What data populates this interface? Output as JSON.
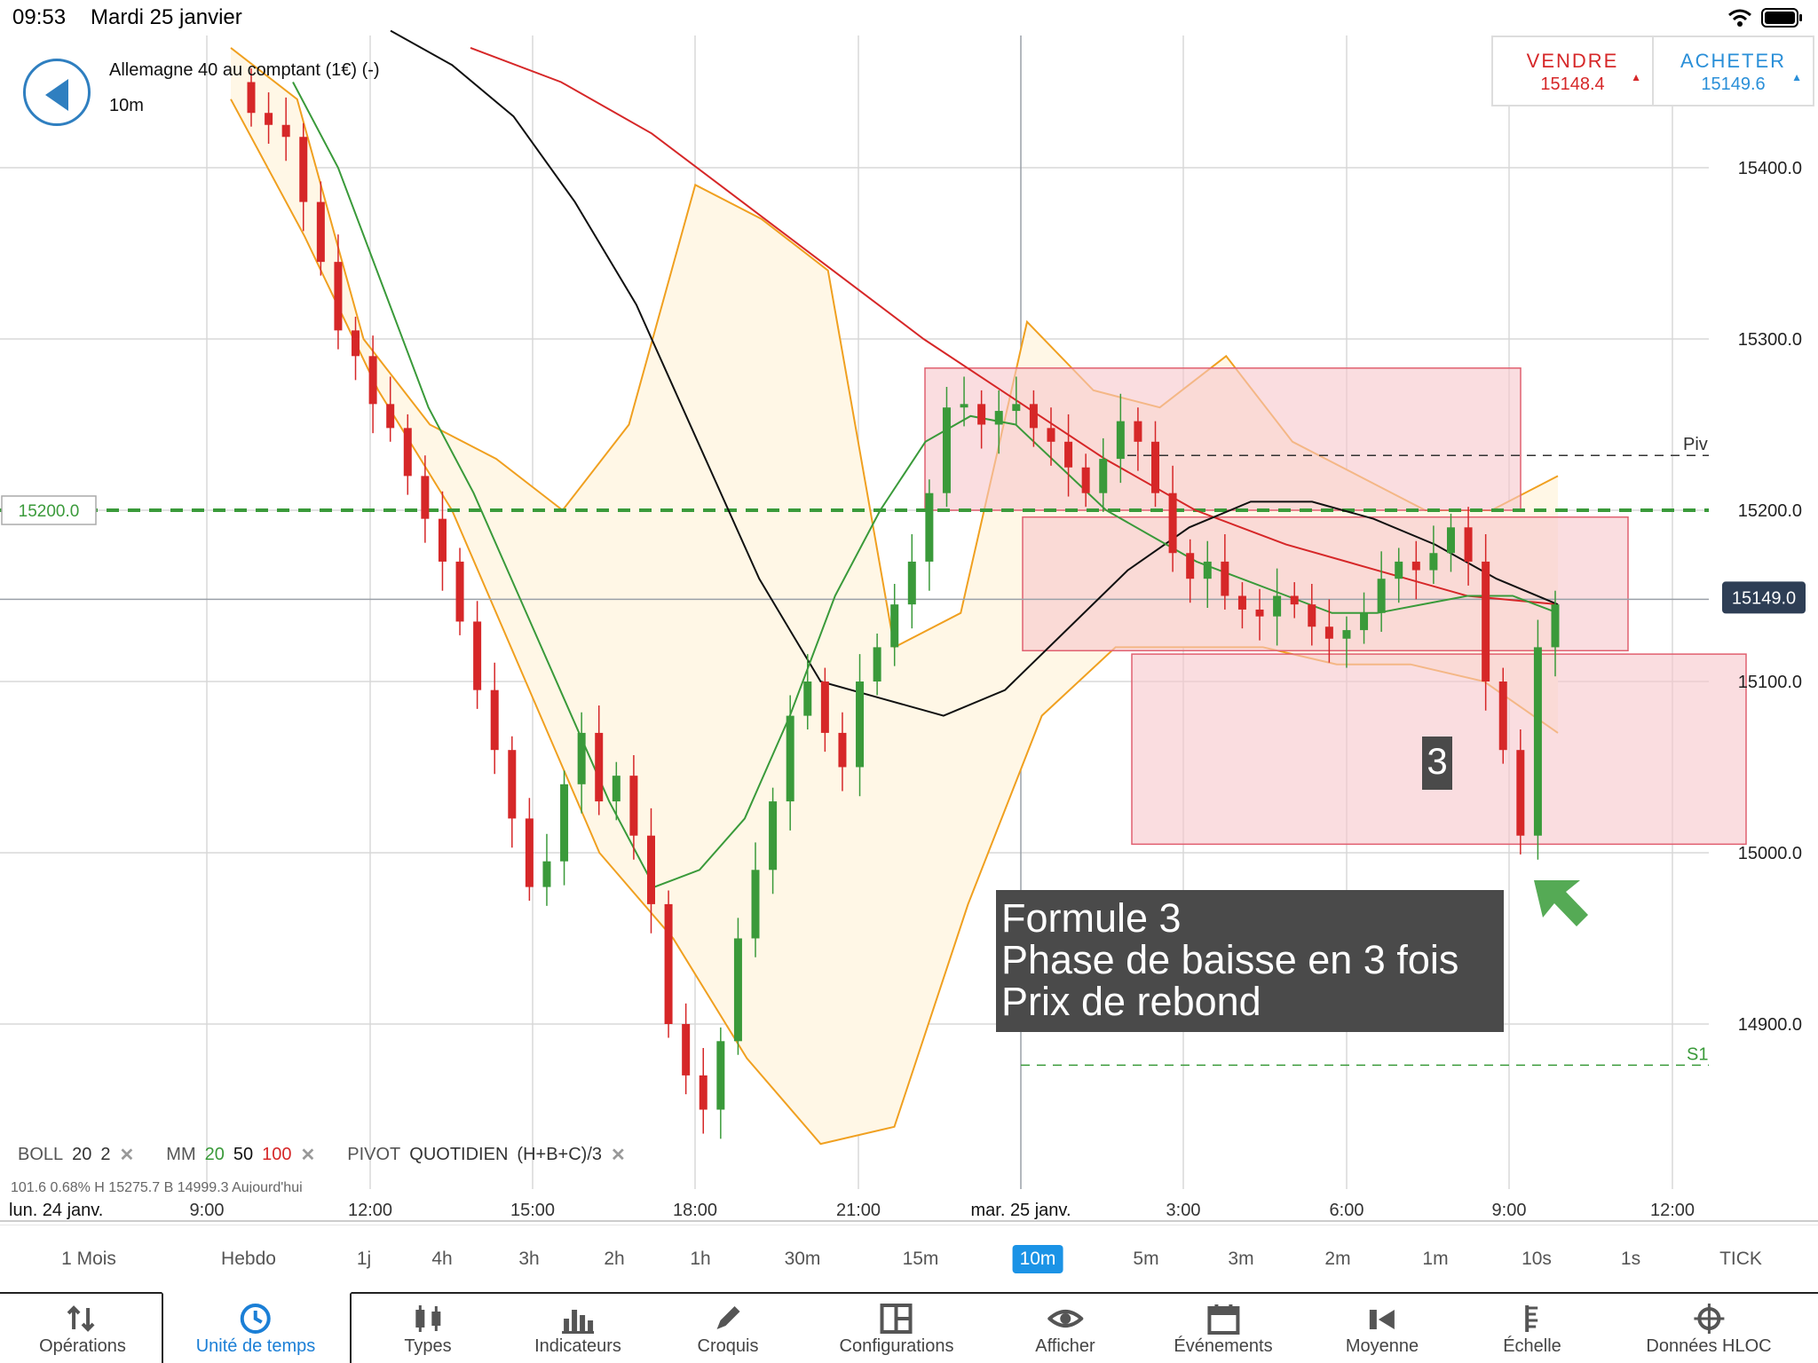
{
  "status_bar": {
    "time": "09:53",
    "date": "Mardi 25 janvier"
  },
  "header": {
    "instrument": "Allemagne 40 au comptant (1€) (-)",
    "timeframe": "10m",
    "back_icon": "back-arrow-icon"
  },
  "trade": {
    "sell_label": "VENDRE",
    "sell_price": "15148.4",
    "buy_label": "ACHETER",
    "buy_price": "15149.6",
    "sell_color": "#d62728",
    "buy_color": "#2a8fd8"
  },
  "chart_data": {
    "type": "candlestick",
    "y_ticks": [
      15400,
      15300,
      15200,
      15100,
      15000,
      14900
    ],
    "y_tick_labels": [
      "15400.0",
      "15300.0",
      "15200.0",
      "15100.0",
      "15000.0",
      "14900.0"
    ],
    "x_tick_labels": [
      "9:00",
      "12:00",
      "15:00",
      "18:00",
      "21:00",
      "3:00",
      "6:00",
      "9:00",
      "12:00"
    ],
    "date_labels": [
      "lun. 24 janv.",
      "mar. 25 janv."
    ],
    "current_price": "15149.0",
    "horizontal_line_label": "15200.0",
    "pivot_label": "Piv",
    "pivot_value": 15232,
    "support_label": "S1",
    "support_value": 14876,
    "annotation_number": "3",
    "annotation_lines": [
      "Formule 3",
      "Phase de baisse en 3 fois",
      "Prix de rebond"
    ],
    "closes": [
      15432,
      15425,
      15418,
      15380,
      15345,
      15305,
      15290,
      15262,
      15248,
      15220,
      15195,
      15170,
      15135,
      15095,
      15060,
      15020,
      14980,
      14995,
      15040,
      15070,
      15030,
      15045,
      15010,
      14970,
      14900,
      14870,
      14850,
      14890,
      14950,
      14990,
      15030,
      15080,
      15100,
      15070,
      15050,
      15100,
      15120,
      15145,
      15170,
      15210,
      15260,
      15262,
      15250,
      15258,
      15262,
      15248,
      15240,
      15225,
      15210,
      15230,
      15252,
      15240,
      15210,
      15175,
      15160,
      15170,
      15150,
      15142,
      15138,
      15150,
      15145,
      15132,
      15125,
      15130,
      15140,
      15160,
      15170,
      15165,
      15175,
      15190,
      15170,
      15100,
      15060,
      15010,
      15120,
      15145
    ],
    "ma20": [
      15450,
      15400,
      15330,
      15260,
      15210,
      15150,
      15090,
      15030,
      14980,
      14990,
      15020,
      15080,
      15150,
      15200,
      15240,
      15255,
      15250,
      15225,
      15200,
      15185,
      15170,
      15160,
      15150,
      15140,
      15140,
      15145,
      15150,
      15150,
      15140
    ],
    "ma50": [
      15480,
      15460,
      15430,
      15380,
      15320,
      15240,
      15160,
      15100,
      15090,
      15080,
      15095,
      15130,
      15165,
      15190,
      15205,
      15205,
      15195,
      15180,
      15160,
      15145
    ],
    "ma100": [
      15470,
      15450,
      15420,
      15380,
      15340,
      15300,
      15265,
      15230,
      15200,
      15180,
      15165,
      15150,
      15145
    ],
    "boll_upper_points": [
      15470,
      15440,
      15300,
      15250,
      15230,
      15200,
      15250,
      15390,
      15370,
      15340,
      15120,
      15140,
      15310,
      15270,
      15260,
      15290,
      15240,
      15220,
      15200,
      15200,
      15220
    ],
    "boll_lower_points": [
      15440,
      15360,
      15270,
      15200,
      15100,
      15000,
      14950,
      14880,
      14830,
      14840,
      14970,
      15080,
      15120,
      15120,
      15120,
      15110,
      15110,
      15100,
      15070
    ],
    "zones": [
      {
        "from": 15200,
        "to": 15283
      },
      {
        "from": 15118,
        "to": 15196
      },
      {
        "from": 15005,
        "to": 15116
      }
    ],
    "colors": {
      "bull": "#3a9a3a",
      "bear": "#d62728",
      "ma20": "#3a9a3a",
      "ma50": "#111111",
      "ma100": "#d62728",
      "boll": "#f0a020",
      "boll_fill": "#fff7e6",
      "zone_fill": "#f7c7cc",
      "zone_stroke": "#e06070",
      "dashed_200": "#3a9a3a",
      "price_tag_bg": "#2e3e55"
    }
  },
  "indicator_legend": {
    "boll_name": "BOLL",
    "boll_p1": "20",
    "boll_p2": "2",
    "mm_name": "MM",
    "mm_p1": "20",
    "mm_p2": "50",
    "mm_p3": "100",
    "pivot_name": "PIVOT",
    "pivot_type": "QUOTIDIEN",
    "pivot_formula": "(H+B+C)/3",
    "remove_glyph": "✕",
    "second_row": "101.6     0.68%        H 15275.7     B 14999.3     Aujourd'hui"
  },
  "timeframes": {
    "items": [
      "1 Mois",
      "Hebdo",
      "1j",
      "4h",
      "3h",
      "2h",
      "1h",
      "30m",
      "15m",
      "10m",
      "5m",
      "3m",
      "2m",
      "1m",
      "10s",
      "1s",
      "TICK"
    ],
    "active": "10m"
  },
  "toolbar": {
    "items": [
      {
        "label": "Opérations",
        "icon": "transfer-arrows-icon"
      },
      {
        "label": "Unité de temps",
        "icon": "clock-icon"
      },
      {
        "label": "Types",
        "icon": "candlestick-icon"
      },
      {
        "label": "Indicateurs",
        "icon": "bar-chart-icon"
      },
      {
        "label": "Croquis",
        "icon": "pencil-icon"
      },
      {
        "label": "Configurations",
        "icon": "layout-icon"
      },
      {
        "label": "Afficher",
        "icon": "eye-icon"
      },
      {
        "label": "Événements",
        "icon": "calendar-icon"
      },
      {
        "label": "Moyenne",
        "icon": "average-icon"
      },
      {
        "label": "Échelle",
        "icon": "scale-icon"
      },
      {
        "label": "Données HLOC",
        "icon": "crosshair-icon"
      }
    ],
    "active": "Unité de temps"
  }
}
